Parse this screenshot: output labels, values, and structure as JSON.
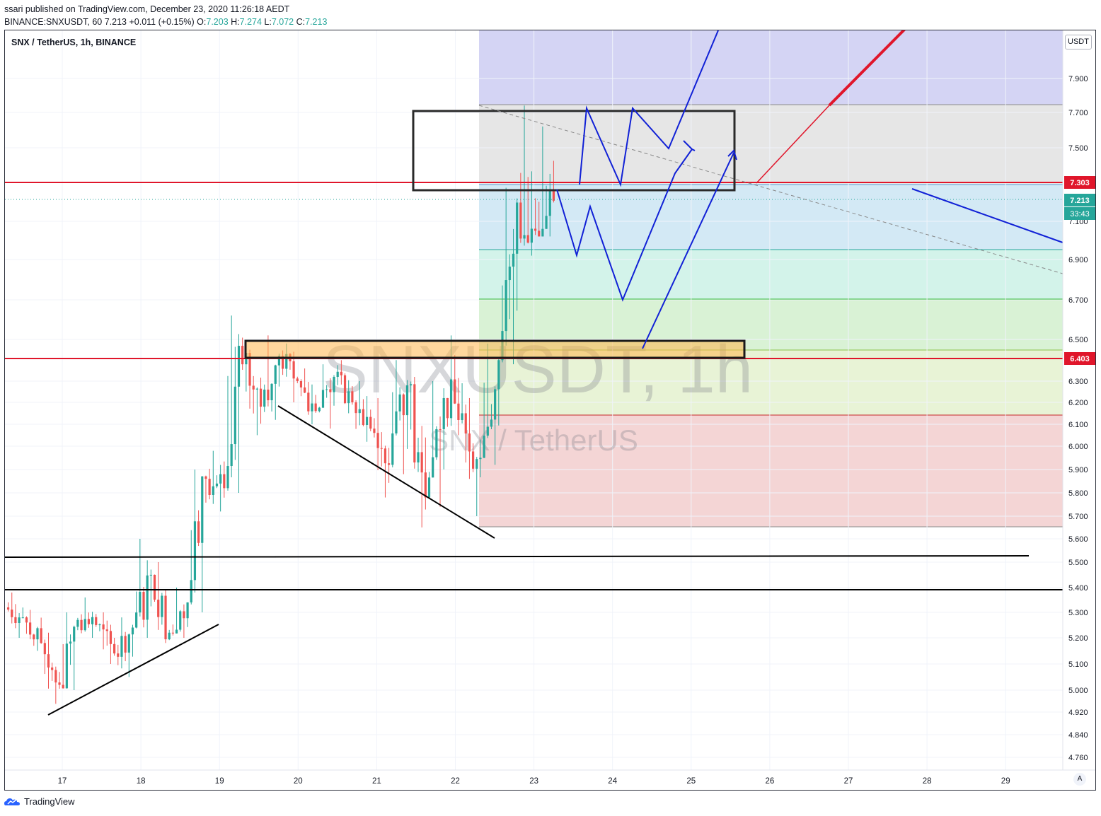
{
  "header": {
    "published_line": "ssari published on TradingView.com, December 23, 2020 11:26:18 AEDT",
    "symbol_line": "BINANCE:SNXUSDT, 60",
    "last": "7.213",
    "change": "+0.011 (+0.15%)",
    "o_label": "O:",
    "o": "7.203",
    "h_label": "H:",
    "h": "7.274",
    "l_label": "L:",
    "l": "7.072",
    "c_label": "C:",
    "c": "7.213"
  },
  "legend": {
    "symbol": "SNX / TetherUS, 1h, BINANCE"
  },
  "watermark": {
    "ticker": "SNXUSDT, 1h",
    "name": "SNX / TetherUS"
  },
  "currency": "USDT",
  "price_badges": [
    {
      "text": "7.303",
      "value": 7.303,
      "color": "#e0162b"
    },
    {
      "text": "7.213",
      "value": 7.213,
      "color": "#26a69a"
    },
    {
      "text": "6.403",
      "value": 6.403,
      "color": "#e0162b"
    }
  ],
  "countdown": "33:43",
  "auto_button": "A",
  "footer": {
    "brand": "TradingView"
  },
  "colors": {
    "up": "#26a69a",
    "down": "#ef5350",
    "blue_path": "#1121d6",
    "red_line": "#e0162b"
  },
  "chart_data": {
    "type": "candlestick",
    "title": "SNX / TetherUS, 1h, BINANCE",
    "y_scale": "log",
    "y_ticks": [
      "7.900",
      "7.700",
      "7.500",
      "7.100",
      "6.900",
      "6.700",
      "6.500",
      "6.300",
      "6.200",
      "6.100",
      "6.000",
      "5.900",
      "5.800",
      "5.700",
      "5.600",
      "5.500",
      "5.400",
      "5.300",
      "5.200",
      "5.100",
      "5.000",
      "4.920",
      "4.840",
      "4.760"
    ],
    "x_ticks": [
      "17",
      "18",
      "19",
      "20",
      "21",
      "22",
      "23",
      "24",
      "25",
      "26",
      "27",
      "28",
      "29"
    ],
    "ylim": [
      4.72,
      8.1
    ],
    "candle_series": [
      {
        "t": "Dec 16 12:00",
        "o": 5.32,
        "h": 5.38,
        "l": 5.2,
        "c": 5.28
      },
      {
        "t": "Dec 16 18:00",
        "o": 5.28,
        "h": 5.31,
        "l": 5.15,
        "c": 5.18
      },
      {
        "t": "Dec 17 00:00",
        "o": 5.18,
        "h": 5.22,
        "l": 4.95,
        "c": 5.02
      },
      {
        "t": "Dec 17 06:00",
        "o": 5.02,
        "h": 5.3,
        "l": 5.0,
        "c": 5.27
      },
      {
        "t": "Dec 17 12:00",
        "o": 5.27,
        "h": 5.36,
        "l": 5.2,
        "c": 5.25
      },
      {
        "t": "Dec 17 18:00",
        "o": 5.25,
        "h": 5.3,
        "l": 5.1,
        "c": 5.14
      },
      {
        "t": "Dec 18 00:00",
        "o": 5.14,
        "h": 5.28,
        "l": 5.05,
        "c": 5.24
      },
      {
        "t": "Dec 18 06:00",
        "o": 5.24,
        "h": 5.6,
        "l": 5.2,
        "c": 5.45
      },
      {
        "t": "Dec 18 12:00",
        "o": 5.45,
        "h": 5.5,
        "l": 5.18,
        "c": 5.22
      },
      {
        "t": "Dec 18 18:00",
        "o": 5.22,
        "h": 5.4,
        "l": 5.2,
        "c": 5.34
      },
      {
        "t": "Dec 19 00:00",
        "o": 5.34,
        "h": 5.9,
        "l": 5.3,
        "c": 5.86
      },
      {
        "t": "Dec 19 06:00",
        "o": 5.86,
        "h": 5.98,
        "l": 5.72,
        "c": 5.82
      },
      {
        "t": "Dec 19 12:00",
        "o": 5.82,
        "h": 6.62,
        "l": 5.8,
        "c": 6.38
      },
      {
        "t": "Dec 19 18:00",
        "o": 6.38,
        "h": 6.45,
        "l": 6.05,
        "c": 6.18
      },
      {
        "t": "Dec 20 00:00",
        "o": 6.18,
        "h": 6.52,
        "l": 6.12,
        "c": 6.42
      },
      {
        "t": "Dec 20 06:00",
        "o": 6.42,
        "h": 6.48,
        "l": 6.2,
        "c": 6.3
      },
      {
        "t": "Dec 20 12:00",
        "o": 6.3,
        "h": 6.36,
        "l": 6.1,
        "c": 6.16
      },
      {
        "t": "Dec 20 18:00",
        "o": 6.16,
        "h": 6.38,
        "l": 6.08,
        "c": 6.32
      },
      {
        "t": "Dec 21 00:00",
        "o": 6.32,
        "h": 6.4,
        "l": 6.15,
        "c": 6.2
      },
      {
        "t": "Dec 21 06:00",
        "o": 6.2,
        "h": 6.3,
        "l": 6.02,
        "c": 6.08
      },
      {
        "t": "Dec 21 12:00",
        "o": 6.08,
        "h": 6.22,
        "l": 5.78,
        "c": 5.92
      },
      {
        "t": "Dec 21 18:00",
        "o": 5.92,
        "h": 6.4,
        "l": 5.88,
        "c": 6.28
      },
      {
        "t": "Dec 22 00:00",
        "o": 6.28,
        "h": 6.32,
        "l": 5.65,
        "c": 5.78
      },
      {
        "t": "Dec 22 06:00",
        "o": 5.78,
        "h": 6.3,
        "l": 5.74,
        "c": 6.22
      },
      {
        "t": "Dec 22 12:00",
        "o": 6.22,
        "h": 6.52,
        "l": 6.05,
        "c": 6.15
      },
      {
        "t": "Dec 22 18:00",
        "o": 6.15,
        "h": 6.22,
        "l": 5.7,
        "c": 5.95
      },
      {
        "t": "Dec 23 00:00",
        "o": 5.95,
        "h": 6.48,
        "l": 5.92,
        "c": 6.4
      },
      {
        "t": "Dec 23 06:00",
        "o": 6.4,
        "h": 7.28,
        "l": 6.38,
        "c": 7.2
      },
      {
        "t": "Dec 23 09:00",
        "o": 7.2,
        "h": 7.74,
        "l": 6.92,
        "c": 7.05
      },
      {
        "t": "Dec 23 11:00",
        "o": 7.05,
        "h": 7.62,
        "l": 7.02,
        "c": 7.21
      }
    ],
    "horizontal_levels": [
      {
        "price": 7.303,
        "color": "#e0162b"
      },
      {
        "price": 6.403,
        "color": "#e0162b"
      },
      {
        "price": 5.39,
        "color": "#000000"
      }
    ]
  }
}
